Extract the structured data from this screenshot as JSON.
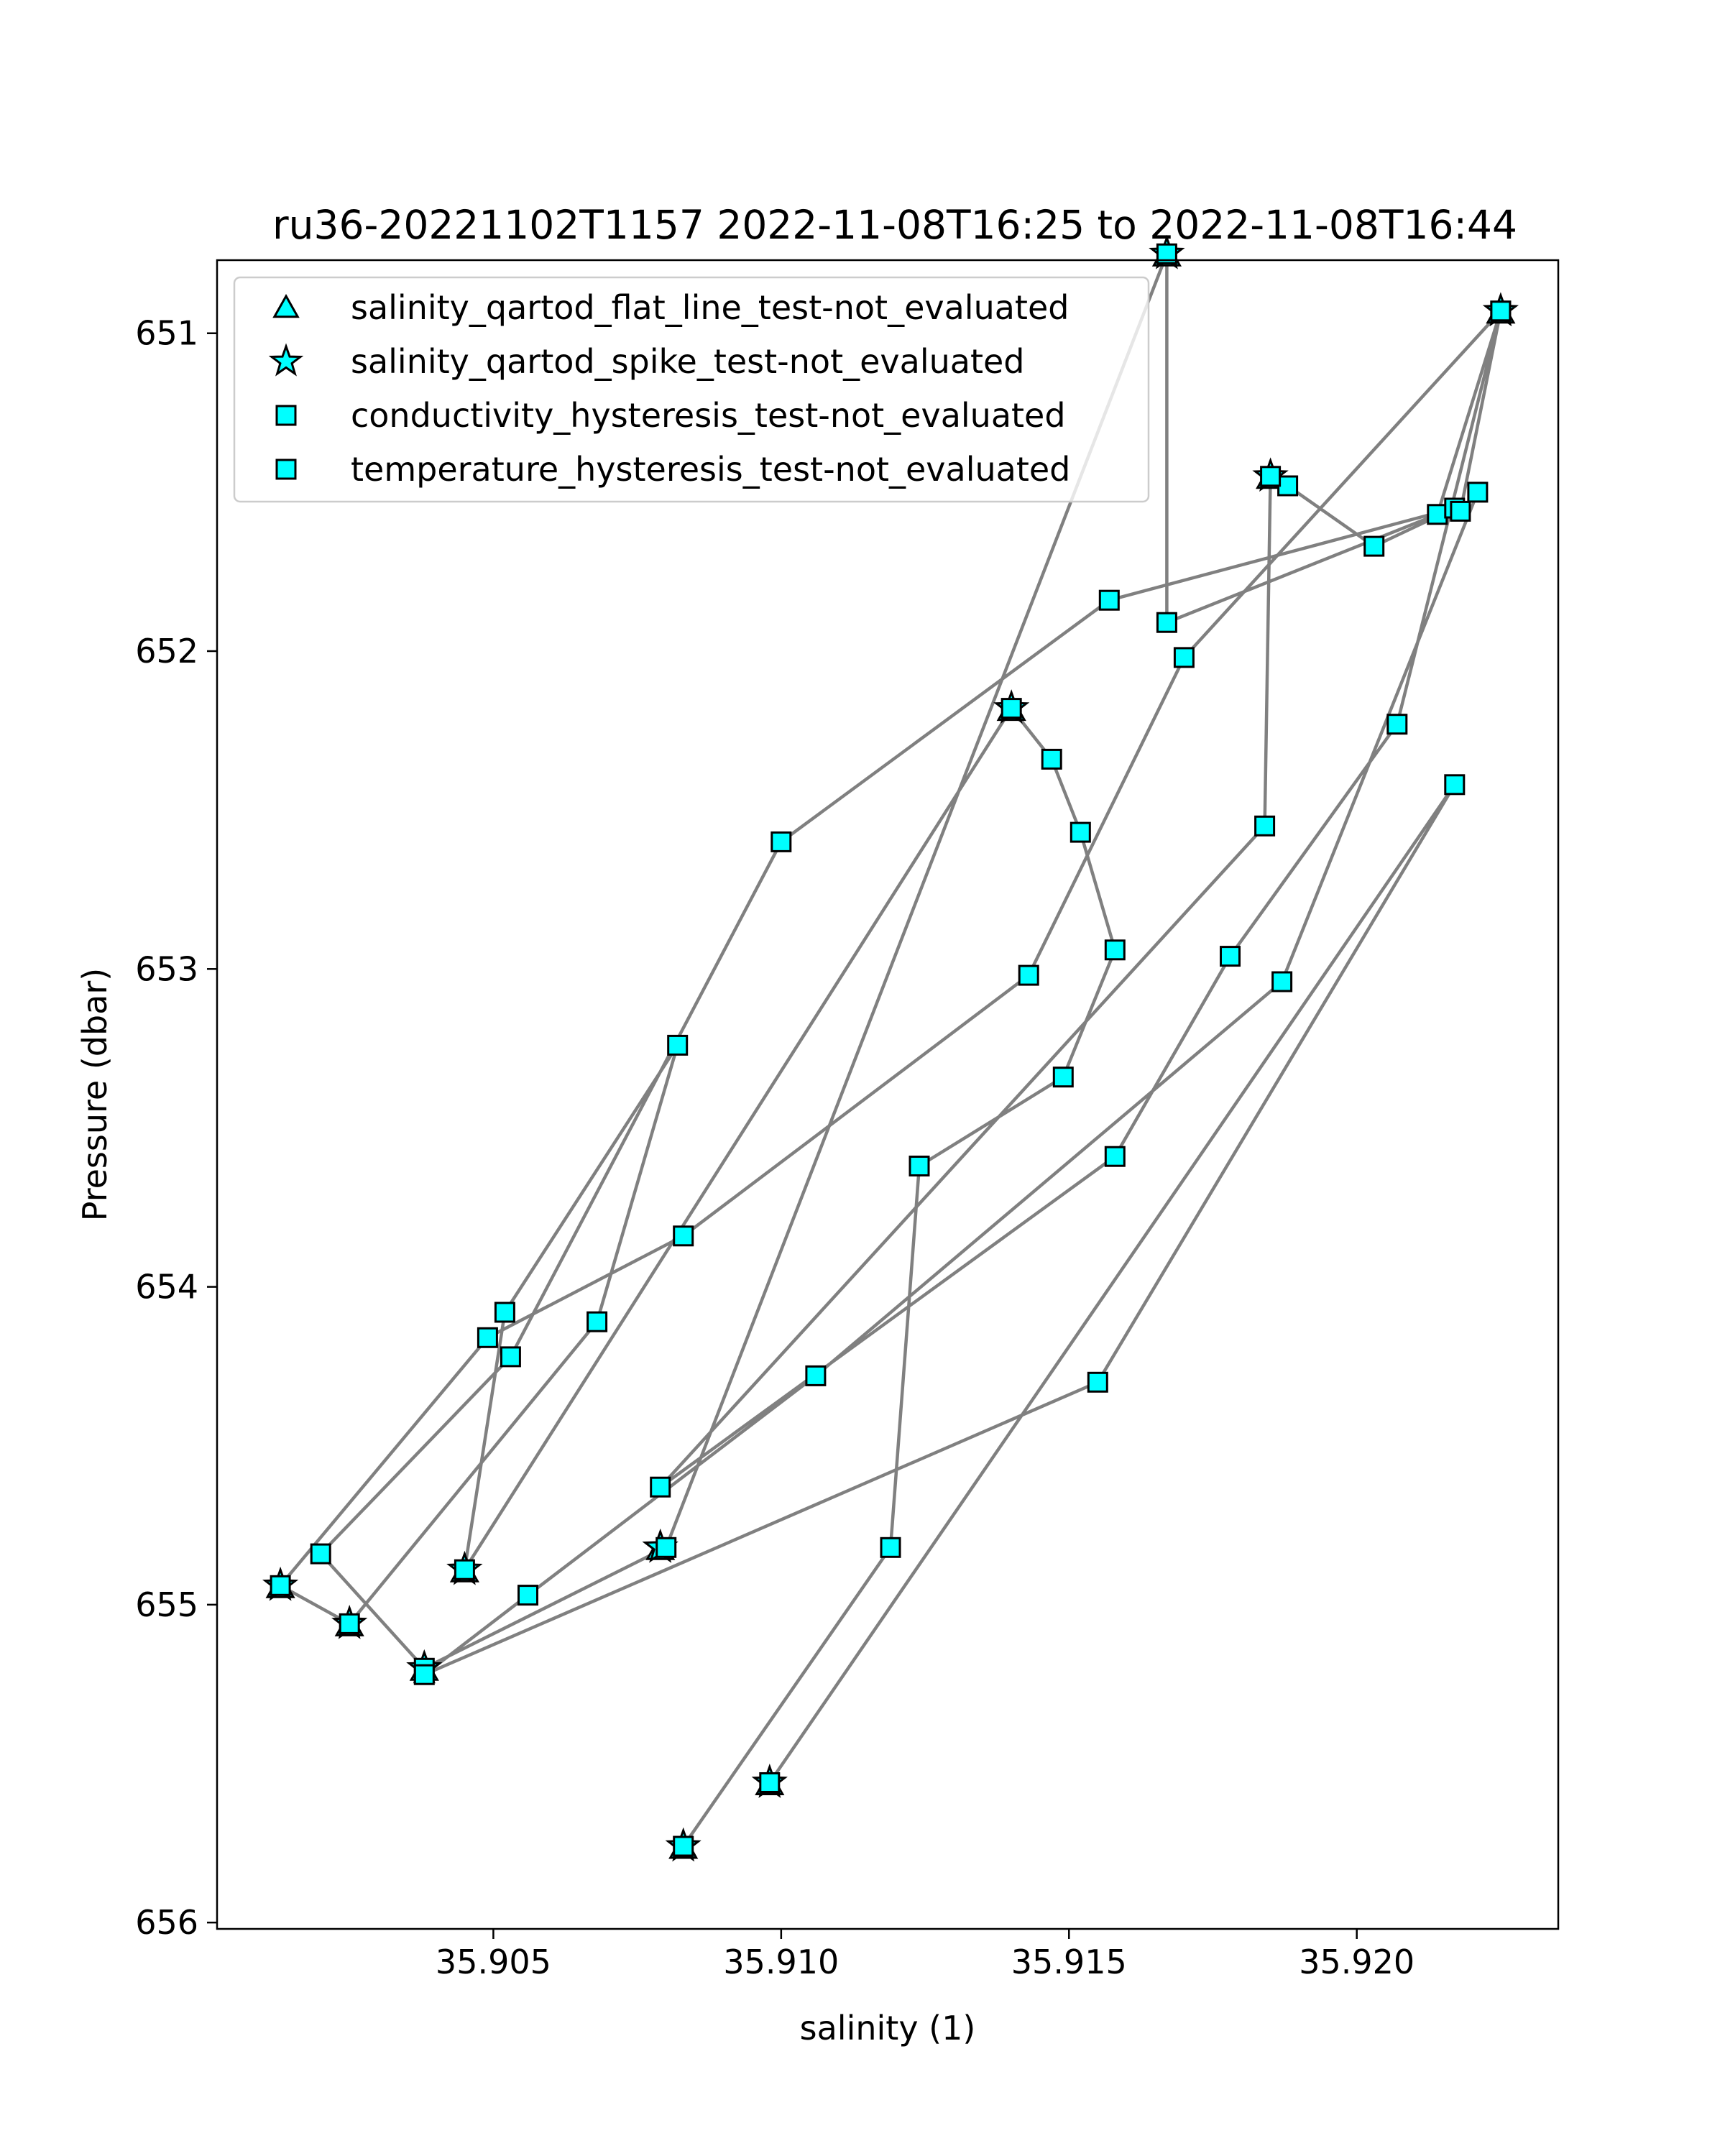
{
  "chart_data": {
    "type": "scatter",
    "title": "ru36-20221102T1157 2022-11-08T16:25 to 2022-11-08T16:44",
    "xlabel": "salinity (1)",
    "ylabel": "Pressure (dbar)",
    "xlim": [
      35.9002,
      35.9235
    ],
    "ylim": [
      656.02,
      650.77
    ],
    "y_inverted": true,
    "grid": false,
    "legend_position": "top-left",
    "x_ticks": [
      35.905,
      35.91,
      35.915,
      35.92
    ],
    "x_tick_labels": [
      "35.905",
      "35.910",
      "35.915",
      "35.920"
    ],
    "y_ticks": [
      651,
      652,
      653,
      654,
      655,
      656
    ],
    "y_tick_labels": [
      "651",
      "652",
      "653",
      "654",
      "655",
      "656"
    ],
    "line_color": "#808080",
    "marker_color": "#00ffff",
    "marker_edge_color": "#000000",
    "legend": [
      {
        "label": "salinity_qartod_flat_line_test-not_evaluated",
        "marker": "triangle"
      },
      {
        "label": "salinity_qartod_spike_test-not_evaluated",
        "marker": "star"
      },
      {
        "label": "conductivity_hysteresis_test-not_evaluated",
        "marker": "square"
      },
      {
        "label": "temperature_hysteresis_test-not_evaluated",
        "marker": "square"
      }
    ],
    "series": [
      {
        "kind": "profile_path",
        "x": [
          35.9083,
          35.9119,
          35.9124,
          35.9149,
          35.9158,
          35.9152,
          35.9147,
          35.914,
          35.9045,
          35.9052,
          35.9082,
          35.9068,
          35.9025,
          35.9013,
          35.9049,
          35.9083,
          35.9143,
          35.917,
          35.9225,
          35.9214,
          35.9167,
          35.9167,
          35.908,
          35.9038,
          35.902,
          35.9053,
          35.91,
          35.9157,
          35.9217,
          35.9203,
          35.9188,
          35.9185,
          35.9184,
          35.9079,
          35.9158,
          35.9178,
          35.9207,
          35.9225,
          35.9218,
          35.9221,
          35.9187,
          35.9106,
          35.9056,
          35.9038,
          35.9155,
          35.9217,
          35.9098
        ],
        "y": [
          655.76,
          654.82,
          653.62,
          653.34,
          652.94,
          652.57,
          652.34,
          652.18,
          654.89,
          654.08,
          653.24,
          654.11,
          655.06,
          654.94,
          654.16,
          653.84,
          653.02,
          652.02,
          650.93,
          651.57,
          651.91,
          650.75,
          654.82,
          655.2,
          654.84,
          654.22,
          652.6,
          651.84,
          651.55,
          651.67,
          651.48,
          651.45,
          652.55,
          654.63,
          653.59,
          652.96,
          652.23,
          650.93,
          651.56,
          651.5,
          653.04,
          654.28,
          654.97,
          655.22,
          654.3,
          652.42,
          655.56
        ]
      },
      {
        "kind": "spike_flag_points",
        "x": [
          35.9083,
          35.9098,
          35.9038,
          35.9025,
          35.9013,
          35.9045,
          35.9079,
          35.914,
          35.9167,
          35.9185,
          35.9225
        ],
        "y": [
          655.76,
          655.56,
          655.2,
          655.06,
          654.94,
          654.89,
          654.82,
          652.18,
          650.75,
          651.45,
          650.93
        ]
      }
    ]
  }
}
